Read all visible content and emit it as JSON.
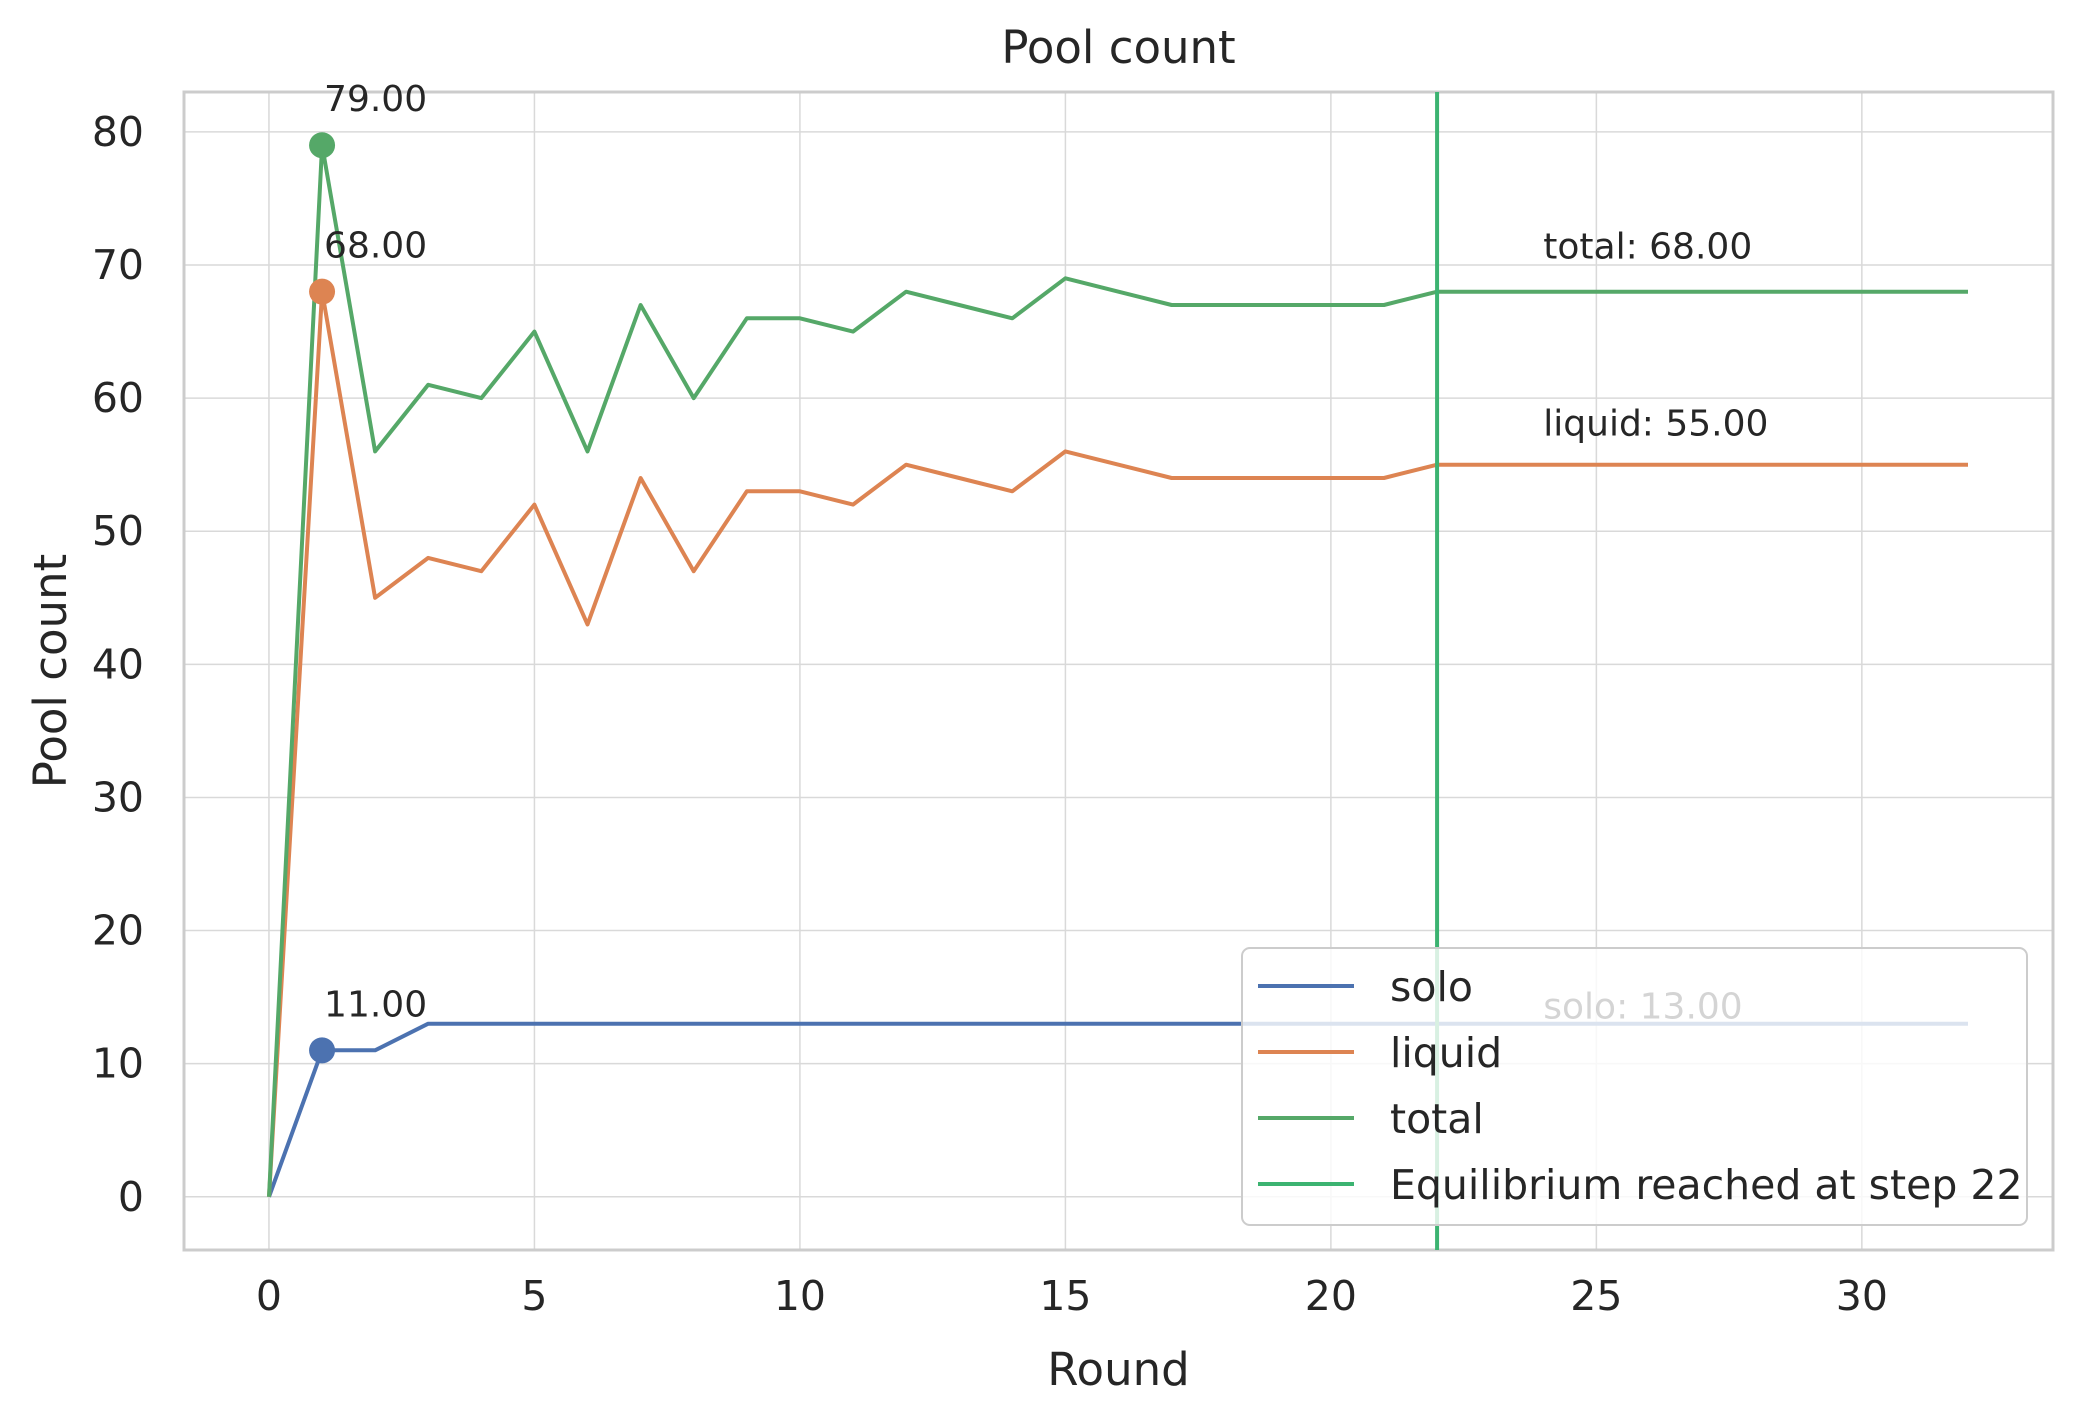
{
  "chart_data": {
    "type": "line",
    "title": "Pool count",
    "xlabel": "Round",
    "ylabel": "Pool count",
    "xlim": [
      -1.6,
      33.6
    ],
    "ylim": [
      -4,
      83
    ],
    "xticks": [
      0,
      5,
      10,
      15,
      20,
      25,
      30
    ],
    "yticks": [
      0,
      10,
      20,
      30,
      40,
      50,
      60,
      70,
      80
    ],
    "grid": true,
    "legend_position": "lower right",
    "x": [
      0,
      1,
      2,
      3,
      4,
      5,
      6,
      7,
      8,
      9,
      10,
      11,
      12,
      13,
      14,
      15,
      16,
      17,
      18,
      19,
      20,
      21,
      22,
      23,
      24,
      25,
      26,
      27,
      28,
      29,
      30,
      31,
      32
    ],
    "series": [
      {
        "name": "solo",
        "color": "#4c72b0",
        "values": [
          0,
          11,
          11,
          13,
          13,
          13,
          13,
          13,
          13,
          13,
          13,
          13,
          13,
          13,
          13,
          13,
          13,
          13,
          13,
          13,
          13,
          13,
          13,
          13,
          13,
          13,
          13,
          13,
          13,
          13,
          13,
          13,
          13
        ]
      },
      {
        "name": "liquid",
        "color": "#dd8452",
        "values": [
          0,
          68,
          45,
          48,
          47,
          52,
          43,
          54,
          47,
          53,
          53,
          52,
          55,
          54,
          53,
          56,
          55,
          54,
          54,
          54,
          54,
          54,
          55,
          55,
          55,
          55,
          55,
          55,
          55,
          55,
          55,
          55,
          55
        ]
      },
      {
        "name": "total",
        "color": "#55a868",
        "values": [
          0,
          79,
          56,
          61,
          60,
          65,
          56,
          67,
          60,
          66,
          66,
          65,
          68,
          67,
          66,
          69,
          68,
          67,
          67,
          67,
          67,
          67,
          68,
          68,
          68,
          68,
          68,
          68,
          68,
          68,
          68,
          68,
          68
        ]
      }
    ],
    "vline": {
      "x": 22,
      "label": "Equilibrium reached at step 22",
      "color": "#3cb371"
    },
    "peak_markers": [
      {
        "series": "solo",
        "x": 1,
        "y": 11,
        "label": "11.00"
      },
      {
        "series": "liquid",
        "x": 1,
        "y": 68,
        "label": "68.00"
      },
      {
        "series": "total",
        "x": 1,
        "y": 79,
        "label": "79.00"
      }
    ],
    "end_labels": [
      {
        "series": "total",
        "x": 24,
        "y": 70.5,
        "label": "total: 68.00"
      },
      {
        "series": "liquid",
        "x": 24,
        "y": 57.2,
        "label": "liquid: 55.00"
      },
      {
        "series": "solo",
        "x": 24,
        "y": 13.4,
        "label": "solo: 13.00"
      }
    ]
  }
}
